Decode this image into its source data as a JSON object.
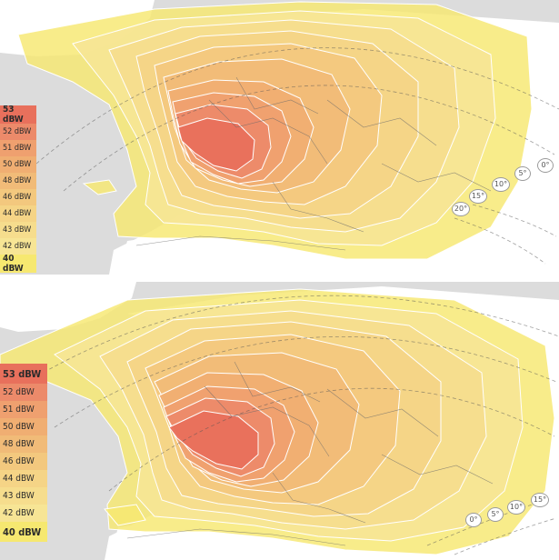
{
  "colors": {
    "sea": "#dcdcdc",
    "land": "#ffffff",
    "contour_line": "#ffffff",
    "border_line": "#6a6a6a"
  },
  "panels": [
    {
      "id": "top",
      "legend": [
        {
          "label": "53 dBW",
          "color": "#e8705c",
          "strong": true
        },
        {
          "label": "52 dBW",
          "color": "#ec8a6a",
          "strong": false
        },
        {
          "label": "51 dBW",
          "color": "#efa06f",
          "strong": false
        },
        {
          "label": "50 dBW",
          "color": "#f0ae72",
          "strong": false
        },
        {
          "label": "48 dBW",
          "color": "#f1bb78",
          "strong": false
        },
        {
          "label": "46 dBW",
          "color": "#f3c87e",
          "strong": false
        },
        {
          "label": "44 dBW",
          "color": "#f5d486",
          "strong": false
        },
        {
          "label": "43 dBW",
          "color": "#f6dd8d",
          "strong": false
        },
        {
          "label": "42 dBW",
          "color": "#f7e595",
          "strong": false
        },
        {
          "label": "40 dBW",
          "color": "#f6e870",
          "strong": true
        }
      ],
      "elevation_labels": [
        "0°",
        "5°",
        "10°",
        "15°",
        "20°"
      ]
    },
    {
      "id": "bottom",
      "legend": [
        {
          "label": "53 dBW",
          "color": "#e8705c",
          "strong": true
        },
        {
          "label": "52 dBW",
          "color": "#ec8a6a",
          "strong": false
        },
        {
          "label": "51 dBW",
          "color": "#efa06f",
          "strong": false
        },
        {
          "label": "50 dBW",
          "color": "#f0ae72",
          "strong": false
        },
        {
          "label": "48 dBW",
          "color": "#f1bb78",
          "strong": false
        },
        {
          "label": "46 dBW",
          "color": "#f3c87e",
          "strong": false
        },
        {
          "label": "44 dBW",
          "color": "#f5d486",
          "strong": false
        },
        {
          "label": "43 dBW",
          "color": "#f6dd8d",
          "strong": false
        },
        {
          "label": "42 dBW",
          "color": "#f7e595",
          "strong": false
        },
        {
          "label": "40 dBW",
          "color": "#f6e870",
          "strong": true
        }
      ],
      "elevation_labels": [
        "0°",
        "5°",
        "10°",
        "15°"
      ]
    }
  ]
}
